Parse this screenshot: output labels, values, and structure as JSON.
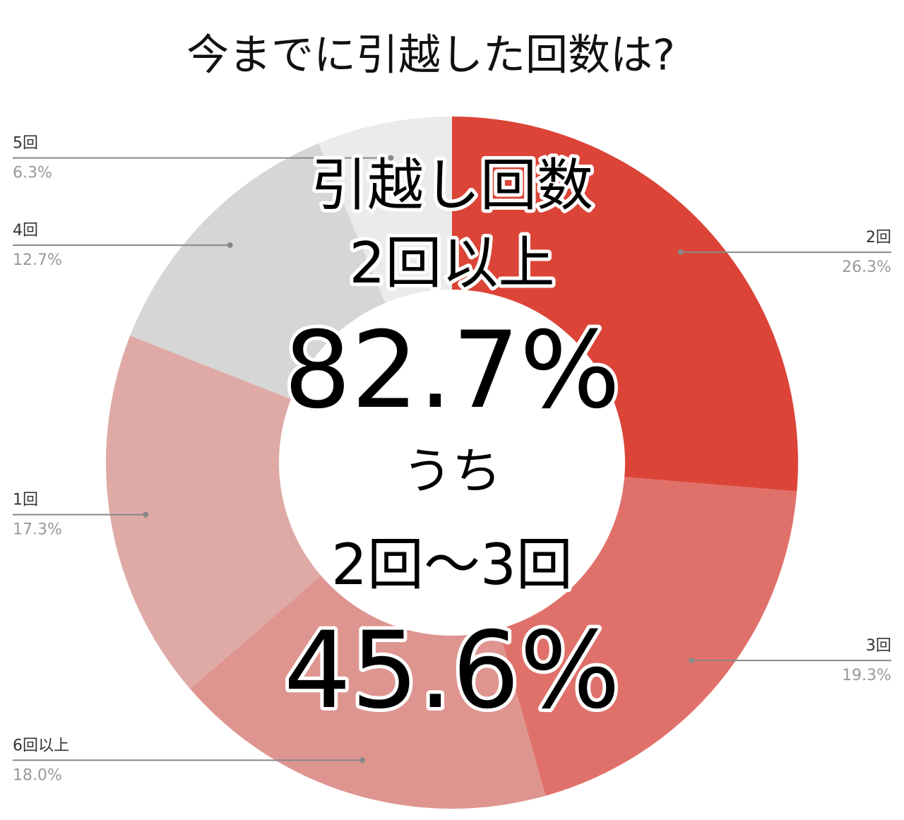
{
  "chart_data": {
    "type": "pie",
    "donut": true,
    "title": "今までに引越した回数は?",
    "categories": [
      "2回",
      "3回",
      "6回以上",
      "1回",
      "4回",
      "5回"
    ],
    "values": [
      26.3,
      19.3,
      18.0,
      17.3,
      12.7,
      6.3
    ],
    "value_labels": [
      "26.3%",
      "19.3%",
      "18.0%",
      "17.3%",
      "12.7%",
      "6.3%"
    ],
    "colors": [
      "#db4437",
      "#e0716a",
      "#de9590",
      "#dfaaa6",
      "#d6d6d6",
      "#ebebeb"
    ],
    "annotations": [
      "引越し回数",
      "2回以上",
      "82.7%",
      "うち",
      "2回〜3回",
      "45.6%"
    ]
  }
}
